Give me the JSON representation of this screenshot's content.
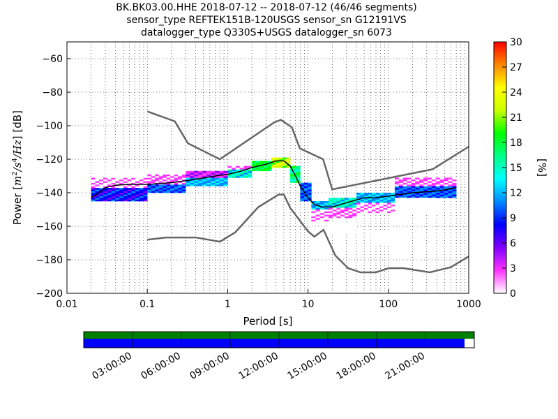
{
  "title": {
    "line1": "BK.BK03.00.HHE   2018-07-12 -- 2018-07-12  (46/46 segments)",
    "line2": "sensor_type REFTEK151B-120USGS sensor_sn G12191VS",
    "line3": "datalogger_type Q330S+USGS datalogger_sn 6073"
  },
  "colors": {
    "model_curves": "#666666",
    "mean_curve": "#000000",
    "coverage_green": "#008000",
    "coverage_blue": "#0000ff",
    "grid": "#000000"
  },
  "chart_data": {
    "type": "heatmap",
    "xlabel": "Period [s]",
    "ylabel_parts": [
      "Power [",
      "m",
      "2",
      "/",
      "s",
      "4",
      "/",
      "Hz",
      "] [dB]"
    ],
    "xscale": "log",
    "xlim": [
      0.01,
      1000
    ],
    "ylim": [
      -200,
      -50
    ],
    "x_ticks": [
      0.01,
      0.1,
      1,
      10,
      100,
      1000
    ],
    "x_tick_labels": [
      "0.01",
      "0.1",
      "1",
      "10",
      "100",
      "1000"
    ],
    "y_ticks": [
      -200,
      -180,
      -160,
      -140,
      -120,
      -100,
      -80,
      -60
    ],
    "y_tick_labels": [
      "−200",
      "−180",
      "−160",
      "−140",
      "−120",
      "−100",
      "−80",
      "−60"
    ],
    "grid": "dotted vertical at log minor periods, horizontal at major y ticks",
    "colorbar": {
      "label": "[%]",
      "range": [
        0,
        30
      ],
      "ticks": [
        0,
        3,
        6,
        9,
        12,
        15,
        18,
        21,
        24,
        27,
        30
      ],
      "colormap": [
        "#ffffff",
        "#ff33ff",
        "#8000ff",
        "#0000ff",
        "#0088ff",
        "#00ffff",
        "#00ff88",
        "#00ff00",
        "#ccff00",
        "#ffff00",
        "#ff8800",
        "#ff0000"
      ]
    },
    "nhnm": [
      {
        "x": 0.1,
        "y": -91.5
      },
      {
        "x": 0.22,
        "y": -97.4
      },
      {
        "x": 0.32,
        "y": -110.5
      },
      {
        "x": 0.8,
        "y": -120
      },
      {
        "x": 3.8,
        "y": -98
      },
      {
        "x": 4.6,
        "y": -96.5
      },
      {
        "x": 6.3,
        "y": -101
      },
      {
        "x": 7.9,
        "y": -113.5
      },
      {
        "x": 15.4,
        "y": -120
      },
      {
        "x": 20,
        "y": -138
      },
      {
        "x": 354.8,
        "y": -126
      },
      {
        "x": 1000,
        "y": -112.5
      }
    ],
    "nlnm": [
      {
        "x": 0.1,
        "y": -168
      },
      {
        "x": 0.17,
        "y": -166.7
      },
      {
        "x": 0.4,
        "y": -166.7
      },
      {
        "x": 0.8,
        "y": -169.2
      },
      {
        "x": 1.24,
        "y": -163.7
      },
      {
        "x": 2.4,
        "y": -148.6
      },
      {
        "x": 4.3,
        "y": -141.1
      },
      {
        "x": 5,
        "y": -141.1
      },
      {
        "x": 6,
        "y": -149
      },
      {
        "x": 10,
        "y": -163
      },
      {
        "x": 12,
        "y": -166.2
      },
      {
        "x": 15.6,
        "y": -162.1
      },
      {
        "x": 21.9,
        "y": -177.5
      },
      {
        "x": 31.6,
        "y": -185
      },
      {
        "x": 45,
        "y": -187.5
      },
      {
        "x": 70,
        "y": -187.5
      },
      {
        "x": 101,
        "y": -185
      },
      {
        "x": 154,
        "y": -185
      },
      {
        "x": 328,
        "y": -187.5
      },
      {
        "x": 600,
        "y": -184.4
      },
      {
        "x": 1000,
        "y": -178
      }
    ],
    "mean": [
      {
        "x": 0.02,
        "y": -143
      },
      {
        "x": 0.025,
        "y": -140
      },
      {
        "x": 0.03,
        "y": -137
      },
      {
        "x": 0.04,
        "y": -135.5
      },
      {
        "x": 0.06,
        "y": -135
      },
      {
        "x": 0.1,
        "y": -135
      },
      {
        "x": 0.2,
        "y": -134
      },
      {
        "x": 0.4,
        "y": -132
      },
      {
        "x": 0.7,
        "y": -130
      },
      {
        "x": 1,
        "y": -129
      },
      {
        "x": 1.5,
        "y": -127
      },
      {
        "x": 2,
        "y": -125
      },
      {
        "x": 3,
        "y": -123
      },
      {
        "x": 4,
        "y": -121
      },
      {
        "x": 5,
        "y": -121
      },
      {
        "x": 6,
        "y": -124
      },
      {
        "x": 7,
        "y": -130
      },
      {
        "x": 8,
        "y": -136
      },
      {
        "x": 10,
        "y": -143
      },
      {
        "x": 12,
        "y": -147
      },
      {
        "x": 15,
        "y": -148.5
      },
      {
        "x": 20,
        "y": -148.5
      },
      {
        "x": 30,
        "y": -146
      },
      {
        "x": 50,
        "y": -143
      },
      {
        "x": 70,
        "y": -143
      },
      {
        "x": 100,
        "y": -142
      },
      {
        "x": 200,
        "y": -140
      },
      {
        "x": 400,
        "y": -139
      },
      {
        "x": 700,
        "y": -137
      }
    ],
    "density_bands": [
      {
        "x0": 0.02,
        "x1": 0.1,
        "y0": -145,
        "y1": -137,
        "level": 12
      },
      {
        "x0": 0.02,
        "x1": 0.1,
        "y0": -137,
        "y1": -131,
        "level": 5
      },
      {
        "x0": 0.03,
        "x1": 0.1,
        "y0": -131,
        "y1": -126,
        "level": 2
      },
      {
        "x0": 0.1,
        "x1": 0.3,
        "y0": -140,
        "y1": -135,
        "level": 14
      },
      {
        "x0": 0.1,
        "x1": 0.3,
        "y0": -135,
        "y1": -129,
        "level": 6
      },
      {
        "x0": 0.15,
        "x1": 0.3,
        "y0": -129,
        "y1": -125,
        "level": 2
      },
      {
        "x0": 0.3,
        "x1": 1,
        "y0": -136,
        "y1": -131,
        "level": 16
      },
      {
        "x0": 0.3,
        "x1": 1,
        "y0": -131,
        "y1": -127,
        "level": 8
      },
      {
        "x0": 1,
        "x1": 2,
        "y0": -131,
        "y1": -126,
        "level": 18
      },
      {
        "x0": 1,
        "x1": 2,
        "y0": -126,
        "y1": -124,
        "level": 6
      },
      {
        "x0": 2,
        "x1": 3.5,
        "y0": -127,
        "y1": -121,
        "level": 22
      },
      {
        "x0": 3.5,
        "x1": 6,
        "y0": -125,
        "y1": -119,
        "level": 26
      },
      {
        "x0": 6,
        "x1": 8,
        "y0": -134,
        "y1": -124,
        "level": 20
      },
      {
        "x0": 8,
        "x1": 11,
        "y0": -145,
        "y1": -134,
        "level": 14
      },
      {
        "x0": 11,
        "x1": 18,
        "y0": -150,
        "y1": -145,
        "level": 16
      },
      {
        "x0": 11,
        "x1": 18,
        "y0": -157,
        "y1": -150,
        "level": 5
      },
      {
        "x0": 18,
        "x1": 40,
        "y0": -149,
        "y1": -143,
        "level": 18
      },
      {
        "x0": 18,
        "x1": 40,
        "y0": -155,
        "y1": -149,
        "level": 6
      },
      {
        "x0": 18,
        "x1": 40,
        "y0": -165,
        "y1": -158,
        "level": 2
      },
      {
        "x0": 40,
        "x1": 120,
        "y0": -146,
        "y1": -140,
        "level": 16
      },
      {
        "x0": 40,
        "x1": 120,
        "y0": -152,
        "y1": -146,
        "level": 5
      },
      {
        "x0": 60,
        "x1": 120,
        "y0": -171,
        "y1": -162,
        "level": 2
      },
      {
        "x0": 120,
        "x1": 700,
        "y0": -143,
        "y1": -136,
        "level": 14
      },
      {
        "x0": 120,
        "x1": 700,
        "y0": -136,
        "y1": -131,
        "level": 6
      },
      {
        "x0": 120,
        "x1": 400,
        "y0": -152,
        "y1": -143,
        "level": 3
      }
    ],
    "coverage": {
      "tick_labels": [
        "03:00:00",
        "06:00:00",
        "09:00:00",
        "12:00:00",
        "15:00:00",
        "18:00:00",
        "21:00:00"
      ],
      "tick_hours": [
        3,
        6,
        9,
        12,
        15,
        18,
        21
      ],
      "range_hours": [
        0,
        24
      ],
      "green_extent": [
        0,
        24
      ],
      "blue_extent": [
        0,
        23.4
      ]
    }
  }
}
